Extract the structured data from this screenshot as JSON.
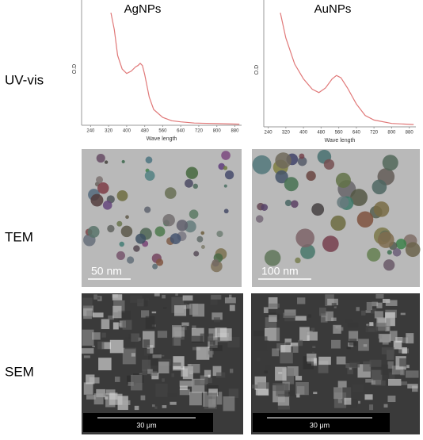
{
  "chart_data": [
    {
      "type": "line",
      "title": "AgNPs",
      "x_label": "Wave length",
      "y_label": "O.D",
      "color": "#e07878",
      "x": [
        330,
        345,
        360,
        380,
        400,
        420,
        440,
        450,
        460,
        470,
        480,
        500,
        520,
        560,
        600,
        640,
        700,
        800,
        900
      ],
      "values": [
        1.0,
        0.85,
        0.62,
        0.5,
        0.46,
        0.48,
        0.52,
        0.53,
        0.55,
        0.53,
        0.45,
        0.25,
        0.14,
        0.07,
        0.04,
        0.03,
        0.02,
        0.015,
        0.01
      ],
      "xlim": [
        200,
        910
      ],
      "ylim": [
        0,
        1
      ],
      "xticks": [
        240,
        320,
        400,
        480,
        560,
        640,
        720,
        800,
        880
      ]
    },
    {
      "type": "line",
      "title": "AuNPs",
      "x_label": "Wave length",
      "y_label": "O.D",
      "color": "#e07878",
      "x": [
        295,
        320,
        360,
        400,
        440,
        470,
        500,
        530,
        550,
        570,
        600,
        640,
        680,
        720,
        800,
        900
      ],
      "values": [
        1.0,
        0.78,
        0.55,
        0.42,
        0.33,
        0.3,
        0.34,
        0.42,
        0.45,
        0.43,
        0.34,
        0.2,
        0.1,
        0.06,
        0.03,
        0.02
      ],
      "xlim": [
        220,
        910
      ],
      "ylim": [
        0,
        1
      ],
      "xticks": [
        240,
        320,
        400,
        480,
        560,
        640,
        720,
        800,
        880
      ]
    }
  ],
  "rows": [
    "UV-vis",
    "TEM",
    "SEM"
  ],
  "tem_scale_labels": [
    "50 nm",
    "100 nm"
  ],
  "sem_scale_labels": [
    "30 μm",
    "30 μm"
  ]
}
